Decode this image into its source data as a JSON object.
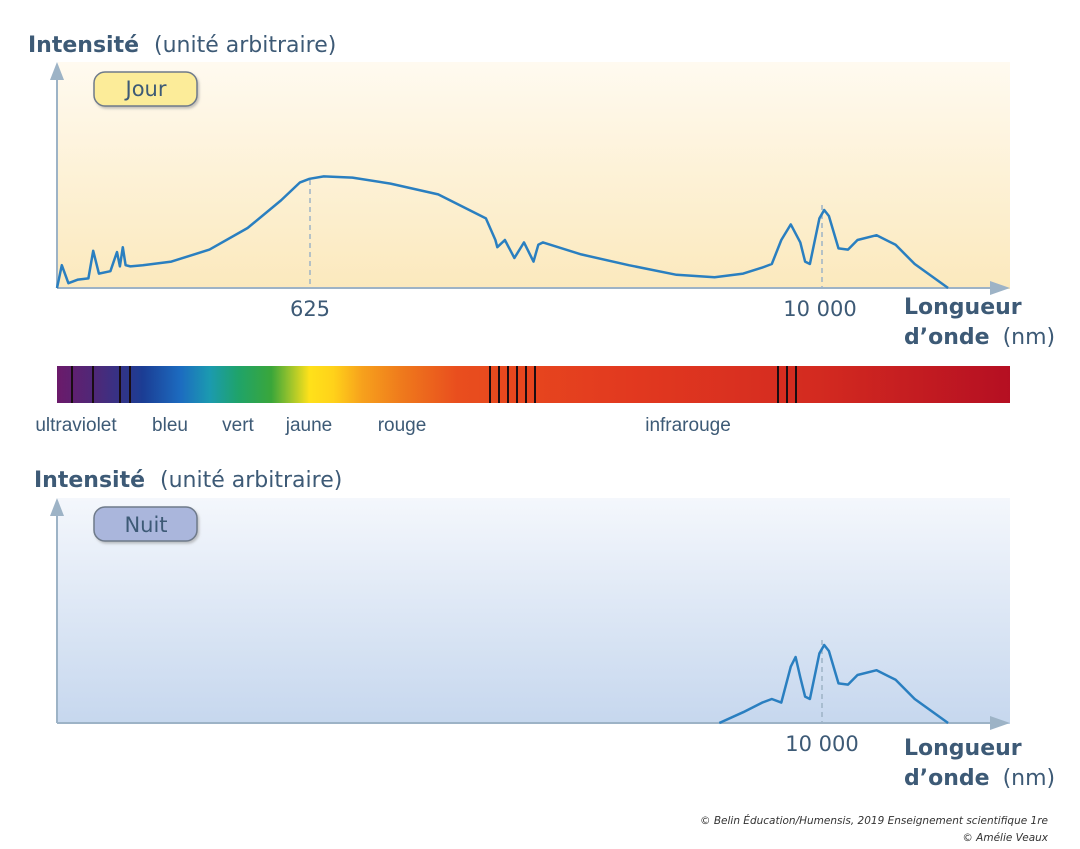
{
  "colors": {
    "curve": "#2a7fc0",
    "axis": "#9db3c6",
    "text": "#3d5a76",
    "day_bg": "#fbeec4",
    "night_bg": "#c9d9ee",
    "jour_box": "#fcec99",
    "nuit_box": "#aab6dc"
  },
  "chart_data": [
    {
      "type": "line",
      "panel": "Jour",
      "ylabel_bold": "Intensité",
      "ylabel_rest": "(unité arbitraire)",
      "xlabel_line1": "Longueur",
      "xlabel_line2_bold": "d’onde",
      "xlabel_line2_rest": "(nm)",
      "badge": "Jour",
      "tick_labels": [
        "625",
        "10 000"
      ],
      "y_range": [
        0,
        1
      ],
      "shape_note": "arbitrary intensity; peak of solar spectrum near 625 nm, atmospheric absorption bands, infrared peaks near 10 000",
      "series": [
        {
          "values_x_rel": [
            0.0,
            0.005,
            0.012,
            0.022,
            0.033,
            0.038,
            0.044,
            0.056,
            0.063,
            0.066,
            0.069,
            0.072,
            0.077,
            0.09,
            0.12,
            0.16,
            0.2,
            0.235,
            0.255,
            0.265,
            0.28,
            0.31,
            0.35,
            0.4,
            0.45,
            0.46,
            0.462,
            0.47,
            0.48,
            0.49,
            0.5,
            0.505,
            0.51,
            0.55,
            0.6,
            0.65,
            0.69,
            0.72,
            0.74,
            0.75,
            0.76,
            0.77,
            0.78,
            0.785,
            0.79,
            0.8,
            0.805,
            0.81,
            0.82,
            0.83,
            0.84,
            0.86,
            0.88,
            0.9,
            0.935
          ],
          "values_y": [
            0.0,
            0.19,
            0.04,
            0.07,
            0.08,
            0.31,
            0.12,
            0.14,
            0.3,
            0.18,
            0.34,
            0.19,
            0.18,
            0.19,
            0.22,
            0.32,
            0.5,
            0.73,
            0.88,
            0.91,
            0.93,
            0.92,
            0.87,
            0.78,
            0.58,
            0.4,
            0.34,
            0.4,
            0.25,
            0.38,
            0.22,
            0.36,
            0.38,
            0.28,
            0.19,
            0.11,
            0.09,
            0.12,
            0.17,
            0.2,
            0.4,
            0.53,
            0.38,
            0.22,
            0.2,
            0.58,
            0.65,
            0.6,
            0.33,
            0.32,
            0.4,
            0.44,
            0.36,
            0.2,
            0.0
          ]
        }
      ]
    },
    {
      "type": "line",
      "panel": "Nuit",
      "ylabel_bold": "Intensité",
      "ylabel_rest": "(unité arbitraire)",
      "xlabel_line1": "Longueur",
      "xlabel_line2_bold": "d’onde",
      "xlabel_line2_rest": "(nm)",
      "badge": "Nuit",
      "tick_labels": [
        "10 000"
      ],
      "y_range": [
        0,
        1
      ],
      "series": [
        {
          "values_x_rel": [
            0.695,
            0.72,
            0.74,
            0.75,
            0.76,
            0.77,
            0.775,
            0.78,
            0.785,
            0.79,
            0.8,
            0.805,
            0.81,
            0.82,
            0.83,
            0.84,
            0.86,
            0.88,
            0.9,
            0.935
          ],
          "values_y": [
            0.0,
            0.09,
            0.17,
            0.2,
            0.17,
            0.47,
            0.55,
            0.38,
            0.22,
            0.2,
            0.58,
            0.65,
            0.6,
            0.33,
            0.32,
            0.4,
            0.44,
            0.36,
            0.2,
            0.0
          ]
        }
      ]
    }
  ],
  "spectrum": {
    "labels": [
      "ultraviolet",
      "bleu",
      "vert",
      "jaune",
      "rouge",
      "infrarouge"
    ]
  },
  "credits": {
    "line1": "© Belin Éducation/Humensis, 2019 Enseignement scientifique 1re",
    "line2": "© Amélie Veaux"
  }
}
